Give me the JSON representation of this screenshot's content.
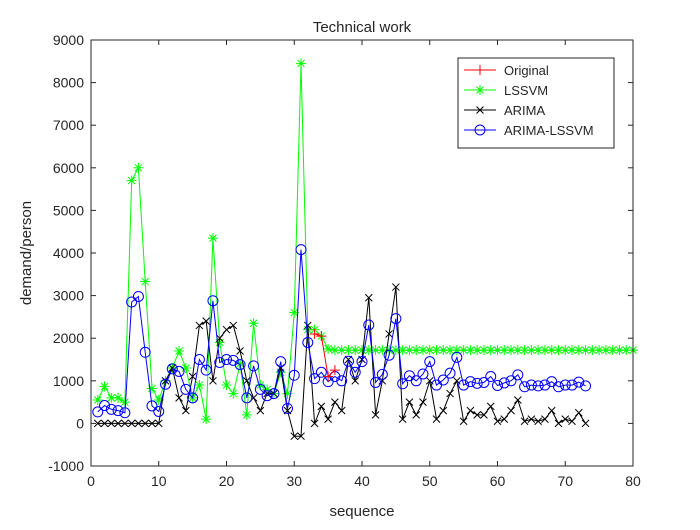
{
  "chart_data": {
    "type": "line",
    "title": "Technical work",
    "xlabel": "sequence",
    "ylabel": "demand/person",
    "xlim": [
      0,
      80
    ],
    "ylim": [
      -1000,
      9000
    ],
    "xticks": [
      0,
      10,
      20,
      30,
      40,
      50,
      60,
      70,
      80
    ],
    "yticks": [
      -1000,
      0,
      1000,
      2000,
      3000,
      4000,
      5000,
      6000,
      7000,
      8000,
      9000
    ],
    "xtick_labels": [
      "0",
      "10",
      "20",
      "30",
      "40",
      "50",
      "60",
      "70",
      "80"
    ],
    "ytick_labels": [
      "-1000",
      "0",
      "1000",
      "2000",
      "3000",
      "4000",
      "5000",
      "6000",
      "7000",
      "8000",
      "9000"
    ],
    "grid": false,
    "legend_position": "top-right",
    "series": [
      {
        "name": "Original",
        "color": "#ff0000",
        "marker": "plus",
        "points": [
          [
            33,
            2100
          ],
          [
            34,
            2050
          ],
          [
            35,
            1100
          ],
          [
            36,
            1250
          ]
        ]
      },
      {
        "name": "LSSVM",
        "color": "#00ff00",
        "marker": "star",
        "points": [
          [
            1,
            550
          ],
          [
            2,
            870
          ],
          [
            3,
            600
          ],
          [
            4,
            600
          ],
          [
            5,
            500
          ],
          [
            6,
            5700
          ],
          [
            7,
            6000
          ],
          [
            8,
            3330
          ],
          [
            9,
            820
          ],
          [
            10,
            550
          ],
          [
            11,
            1000
          ],
          [
            12,
            1300
          ],
          [
            13,
            1700
          ],
          [
            14,
            1300
          ],
          [
            15,
            600
          ],
          [
            16,
            900
          ],
          [
            17,
            100
          ],
          [
            18,
            4350
          ],
          [
            19,
            1900
          ],
          [
            20,
            900
          ],
          [
            21,
            700
          ],
          [
            22,
            1400
          ],
          [
            23,
            200
          ],
          [
            24,
            2350
          ],
          [
            25,
            900
          ],
          [
            26,
            800
          ],
          [
            27,
            700
          ],
          [
            28,
            1200
          ],
          [
            29,
            700
          ],
          [
            30,
            2600
          ],
          [
            31,
            8450
          ],
          [
            32,
            2200
          ],
          [
            33,
            2200
          ],
          [
            34,
            2050
          ],
          [
            35,
            1750
          ],
          [
            36,
            1720
          ],
          [
            37,
            1720
          ],
          [
            38,
            1720
          ],
          [
            39,
            1720
          ],
          [
            40,
            1720
          ],
          [
            41,
            1720
          ],
          [
            42,
            1720
          ],
          [
            43,
            1720
          ],
          [
            44,
            1720
          ],
          [
            45,
            1720
          ],
          [
            46,
            1720
          ],
          [
            47,
            1720
          ],
          [
            48,
            1720
          ],
          [
            49,
            1720
          ],
          [
            50,
            1720
          ],
          [
            51,
            1720
          ],
          [
            52,
            1720
          ],
          [
            53,
            1720
          ],
          [
            54,
            1720
          ],
          [
            55,
            1720
          ],
          [
            56,
            1720
          ],
          [
            57,
            1720
          ],
          [
            58,
            1720
          ],
          [
            59,
            1720
          ],
          [
            60,
            1720
          ],
          [
            61,
            1720
          ],
          [
            62,
            1720
          ],
          [
            63,
            1720
          ],
          [
            64,
            1720
          ],
          [
            65,
            1720
          ],
          [
            66,
            1720
          ],
          [
            67,
            1720
          ],
          [
            68,
            1720
          ],
          [
            69,
            1720
          ],
          [
            70,
            1720
          ],
          [
            71,
            1720
          ],
          [
            72,
            1720
          ],
          [
            73,
            1720
          ],
          [
            74,
            1720
          ],
          [
            75,
            1720
          ],
          [
            76,
            1720
          ],
          [
            77,
            1720
          ],
          [
            78,
            1720
          ],
          [
            79,
            1720
          ],
          [
            80,
            1720
          ]
        ]
      },
      {
        "name": "ARIMA",
        "color": "#000000",
        "marker": "x",
        "points": [
          [
            1,
            0
          ],
          [
            2,
            0
          ],
          [
            3,
            0
          ],
          [
            4,
            0
          ],
          [
            5,
            0
          ],
          [
            6,
            0
          ],
          [
            7,
            0
          ],
          [
            8,
            0
          ],
          [
            9,
            0
          ],
          [
            10,
            0
          ],
          [
            11,
            1000
          ],
          [
            12,
            1300
          ],
          [
            13,
            600
          ],
          [
            14,
            300
          ],
          [
            15,
            1100
          ],
          [
            16,
            2300
          ],
          [
            17,
            2400
          ],
          [
            18,
            1000
          ],
          [
            19,
            2000
          ],
          [
            20,
            2200
          ],
          [
            21,
            2300
          ],
          [
            22,
            1700
          ],
          [
            23,
            1000
          ],
          [
            24,
            600
          ],
          [
            25,
            300
          ],
          [
            26,
            700
          ],
          [
            27,
            700
          ],
          [
            28,
            1300
          ],
          [
            29,
            300
          ],
          [
            30,
            -300
          ],
          [
            31,
            -300
          ],
          [
            32,
            2300
          ],
          [
            33,
            0
          ],
          [
            34,
            400
          ],
          [
            35,
            100
          ],
          [
            36,
            500
          ],
          [
            37,
            300
          ],
          [
            38,
            1500
          ],
          [
            39,
            1000
          ],
          [
            40,
            1500
          ],
          [
            41,
            2950
          ],
          [
            42,
            200
          ],
          [
            43,
            1000
          ],
          [
            44,
            2100
          ],
          [
            45,
            3200
          ],
          [
            46,
            100
          ],
          [
            47,
            500
          ],
          [
            48,
            200
          ],
          [
            49,
            500
          ],
          [
            50,
            1000
          ],
          [
            51,
            100
          ],
          [
            52,
            300
          ],
          [
            53,
            700
          ],
          [
            54,
            1000
          ],
          [
            55,
            50
          ],
          [
            56,
            300
          ],
          [
            57,
            200
          ],
          [
            58,
            200
          ],
          [
            59,
            400
          ],
          [
            60,
            50
          ],
          [
            61,
            100
          ],
          [
            62,
            300
          ],
          [
            63,
            550
          ],
          [
            64,
            50
          ],
          [
            65,
            100
          ],
          [
            66,
            50
          ],
          [
            67,
            100
          ],
          [
            68,
            300
          ],
          [
            69,
            0
          ],
          [
            70,
            100
          ],
          [
            71,
            50
          ],
          [
            72,
            250
          ],
          [
            73,
            0
          ]
        ]
      },
      {
        "name": "ARIMA-LSSVM",
        "color": "#0000ff",
        "marker": "circle",
        "points": [
          [
            1,
            270
          ],
          [
            2,
            420
          ],
          [
            3,
            330
          ],
          [
            4,
            300
          ],
          [
            5,
            250
          ],
          [
            6,
            2850
          ],
          [
            7,
            2980
          ],
          [
            8,
            1670
          ],
          [
            9,
            410
          ],
          [
            10,
            280
          ],
          [
            11,
            920
          ],
          [
            12,
            1280
          ],
          [
            13,
            1220
          ],
          [
            14,
            800
          ],
          [
            15,
            600
          ],
          [
            16,
            1500
          ],
          [
            17,
            1250
          ],
          [
            18,
            2880
          ],
          [
            19,
            1430
          ],
          [
            20,
            1500
          ],
          [
            21,
            1480
          ],
          [
            22,
            1380
          ],
          [
            23,
            600
          ],
          [
            24,
            1350
          ],
          [
            25,
            800
          ],
          [
            26,
            650
          ],
          [
            27,
            700
          ],
          [
            28,
            1450
          ],
          [
            29,
            350
          ],
          [
            30,
            1130
          ],
          [
            31,
            4080
          ],
          [
            32,
            1900
          ],
          [
            33,
            1050
          ],
          [
            34,
            1200
          ],
          [
            35,
            980
          ],
          [
            36,
            1100
          ],
          [
            37,
            1000
          ],
          [
            38,
            1460
          ],
          [
            39,
            1200
          ],
          [
            40,
            1450
          ],
          [
            41,
            2310
          ],
          [
            42,
            960
          ],
          [
            43,
            1150
          ],
          [
            44,
            1600
          ],
          [
            45,
            2460
          ],
          [
            46,
            930
          ],
          [
            47,
            1120
          ],
          [
            48,
            1000
          ],
          [
            49,
            1160
          ],
          [
            50,
            1450
          ],
          [
            51,
            900
          ],
          [
            52,
            1020
          ],
          [
            53,
            1180
          ],
          [
            54,
            1550
          ],
          [
            55,
            900
          ],
          [
            56,
            980
          ],
          [
            57,
            940
          ],
          [
            58,
            960
          ],
          [
            59,
            1100
          ],
          [
            60,
            890
          ],
          [
            61,
            950
          ],
          [
            62,
            1000
          ],
          [
            63,
            1140
          ],
          [
            64,
            860
          ],
          [
            65,
            900
          ],
          [
            66,
            880
          ],
          [
            67,
            900
          ],
          [
            68,
            980
          ],
          [
            69,
            860
          ],
          [
            70,
            900
          ],
          [
            71,
            900
          ],
          [
            72,
            970
          ],
          [
            73,
            880
          ]
        ]
      }
    ]
  }
}
